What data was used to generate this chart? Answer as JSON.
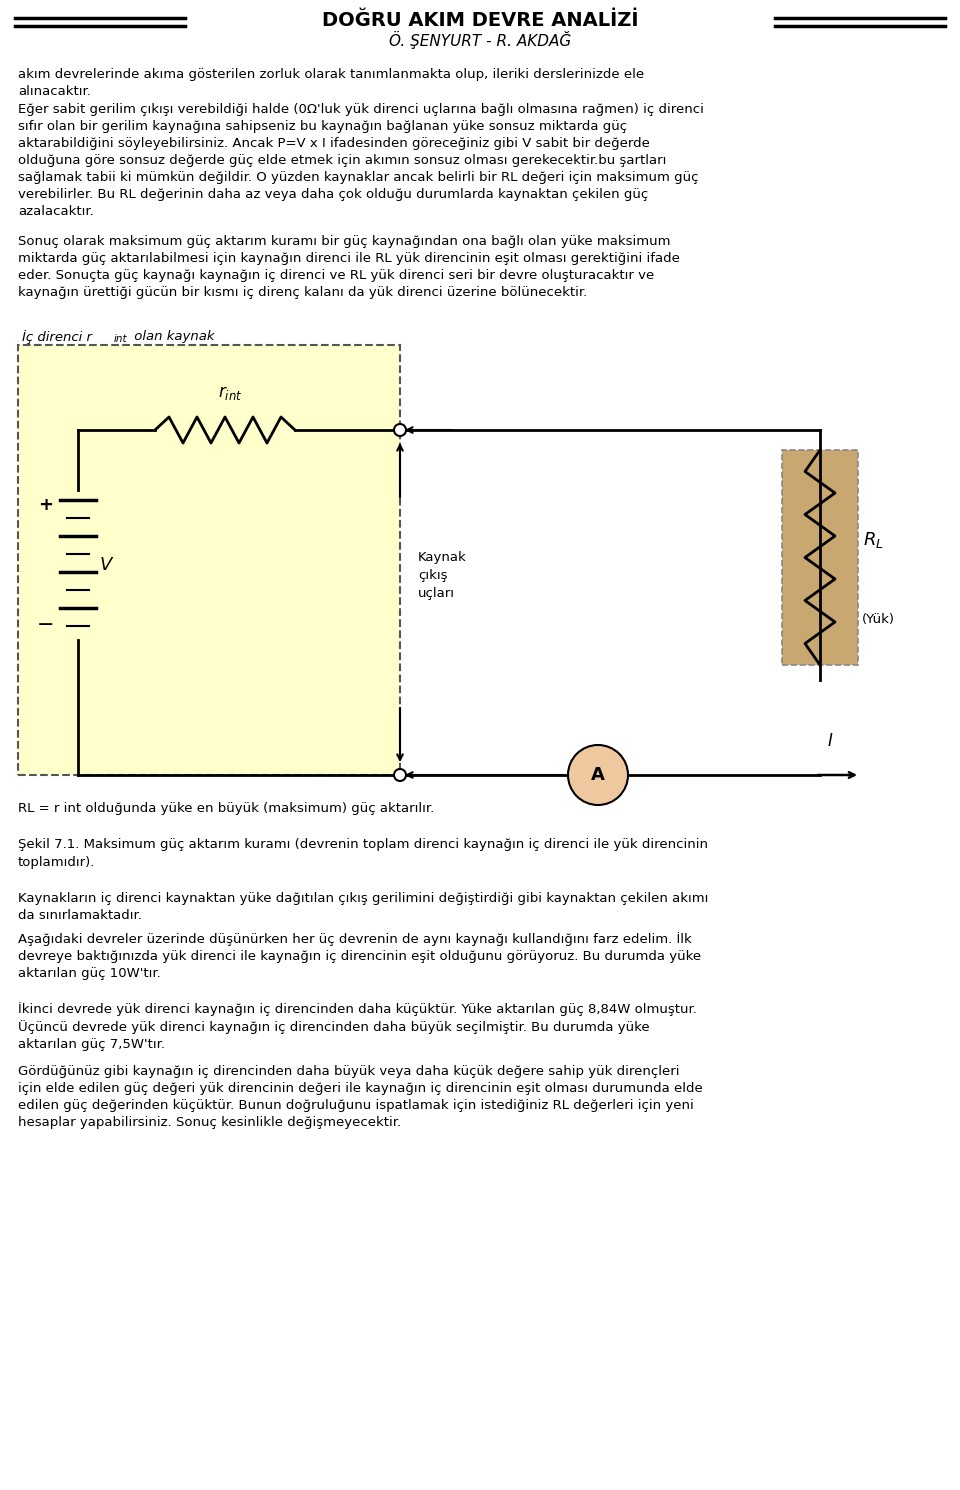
{
  "title": "DOGRU AKIM DEVRE ANALIZi",
  "title_display": "DOĞRU AKIM DEVRE ANALİZİ",
  "subtitle": "Ö. ŞENYURT - R. AKDAĞ",
  "bg_color": "#ffffff",
  "text_color": "#000000",
  "paragraph1": "akım devrelerinde akıma gösterilen zorluk olarak tanımlanmakta olup, ileriki derslerinizde ele\nalınacaktır.",
  "paragraph2": "Eğer sabit gerilim çıkışı verebildiği halde (0Ω'luk yük direnci uçlarına bağlı olmasına rağmen) iç direnci\nsıfır olan bir gerilim kaynağına sahipseniz bu kaynağın bağlanan yüke sonsuz miktarda güç\naktarabildiğini söyleyebilirsiniz. Ancak P=V x I ifadesinden göreceğiniz gibi V sabit bir değerde\nolduğuna göre sonsuz değerde güç elde etmek için akımın sonsuz olması gerekecektir.bu şartları\nsağlamak tabii ki mümkün değildir. O yüzden kaynaklar ancak belirli bir RL değeri için maksimum güç\nverebilirler. Bu RL değerinin daha az veya daha çok olduğu durumlarda kaynaktan çekilen güç\nazalacaktır.",
  "paragraph3": "Sonuç olarak maksimum güç aktarım kuramı bir güç kaynağından ona bağlı olan yüke maksimum\nmiktarda güç aktarılabilmesi için kaynağın direnci ile RL yük direncinin eşit olması gerektiğini ifade\neder. Sonuçta güç kaynağı kaynağın iç direnci ve RL yük direnci seri bir devre oluşturacaktır ve\nkaynağın ürettiği gücün bir kısmı iç direnç kalanı da yük direnci üzerine bölünecektir.",
  "rl_caption": "RL = r int olduğunda yüke en büyük (maksimum) güç aktarılır.",
  "caption_line1": "Şekil 7.1. Maksimum güç aktarım kuramı (devrenin toplam direnci kaynağın iç direnci ile yük direncinin",
  "caption_line2": "toplamıdır).",
  "paragraph4": "Kaynakların iç direnci kaynaktan yüke dağıtılan çıkış gerilimini değiştirdiği gibi kaynaktan çekilen akımı\nda sınırlamaktadır.",
  "paragraph5": "Aşağıdaki devreler üzerinde düşünürken her üç devrenin de aynı kaynağı kullandığını farz edelim. İlk\ndevreye baktığınızda yük direnci ile kaynağın iç direncinin eşit olduğunu görüyoruz. Bu durumda yüke\naktarılan güç 10W'tır.",
  "paragraph6": "İkinci devrede yük direnci kaynağın iç direncinden daha küçüktür. Yüke aktarılan güç 8,84W olmuştur.\nÜçüncü devrede yük direnci kaynağın iç direncinden daha büyük seçilmiştir. Bu durumda yüke\naktarılan güç 7,5W'tır.",
  "paragraph7": "Gördüğünüz gibi kaynağın iç direncinden daha büyük veya daha küçük değere sahip yük dirençleri\niçin elde edilen güç değeri yük direncinin değeri ile kaynağın iç direncinin eşit olması durumunda elde\nedilen güç değerinden küçüktür. Bunun doğruluğunu ispatlamak için istediğiniz RL değerleri için yeni\nhesaplar yapabilirsiniz. Sonuç kesinlikle değişmeyecektir.",
  "yellow_bg": "#ffffcc",
  "resistor_tan": "#c8a870"
}
